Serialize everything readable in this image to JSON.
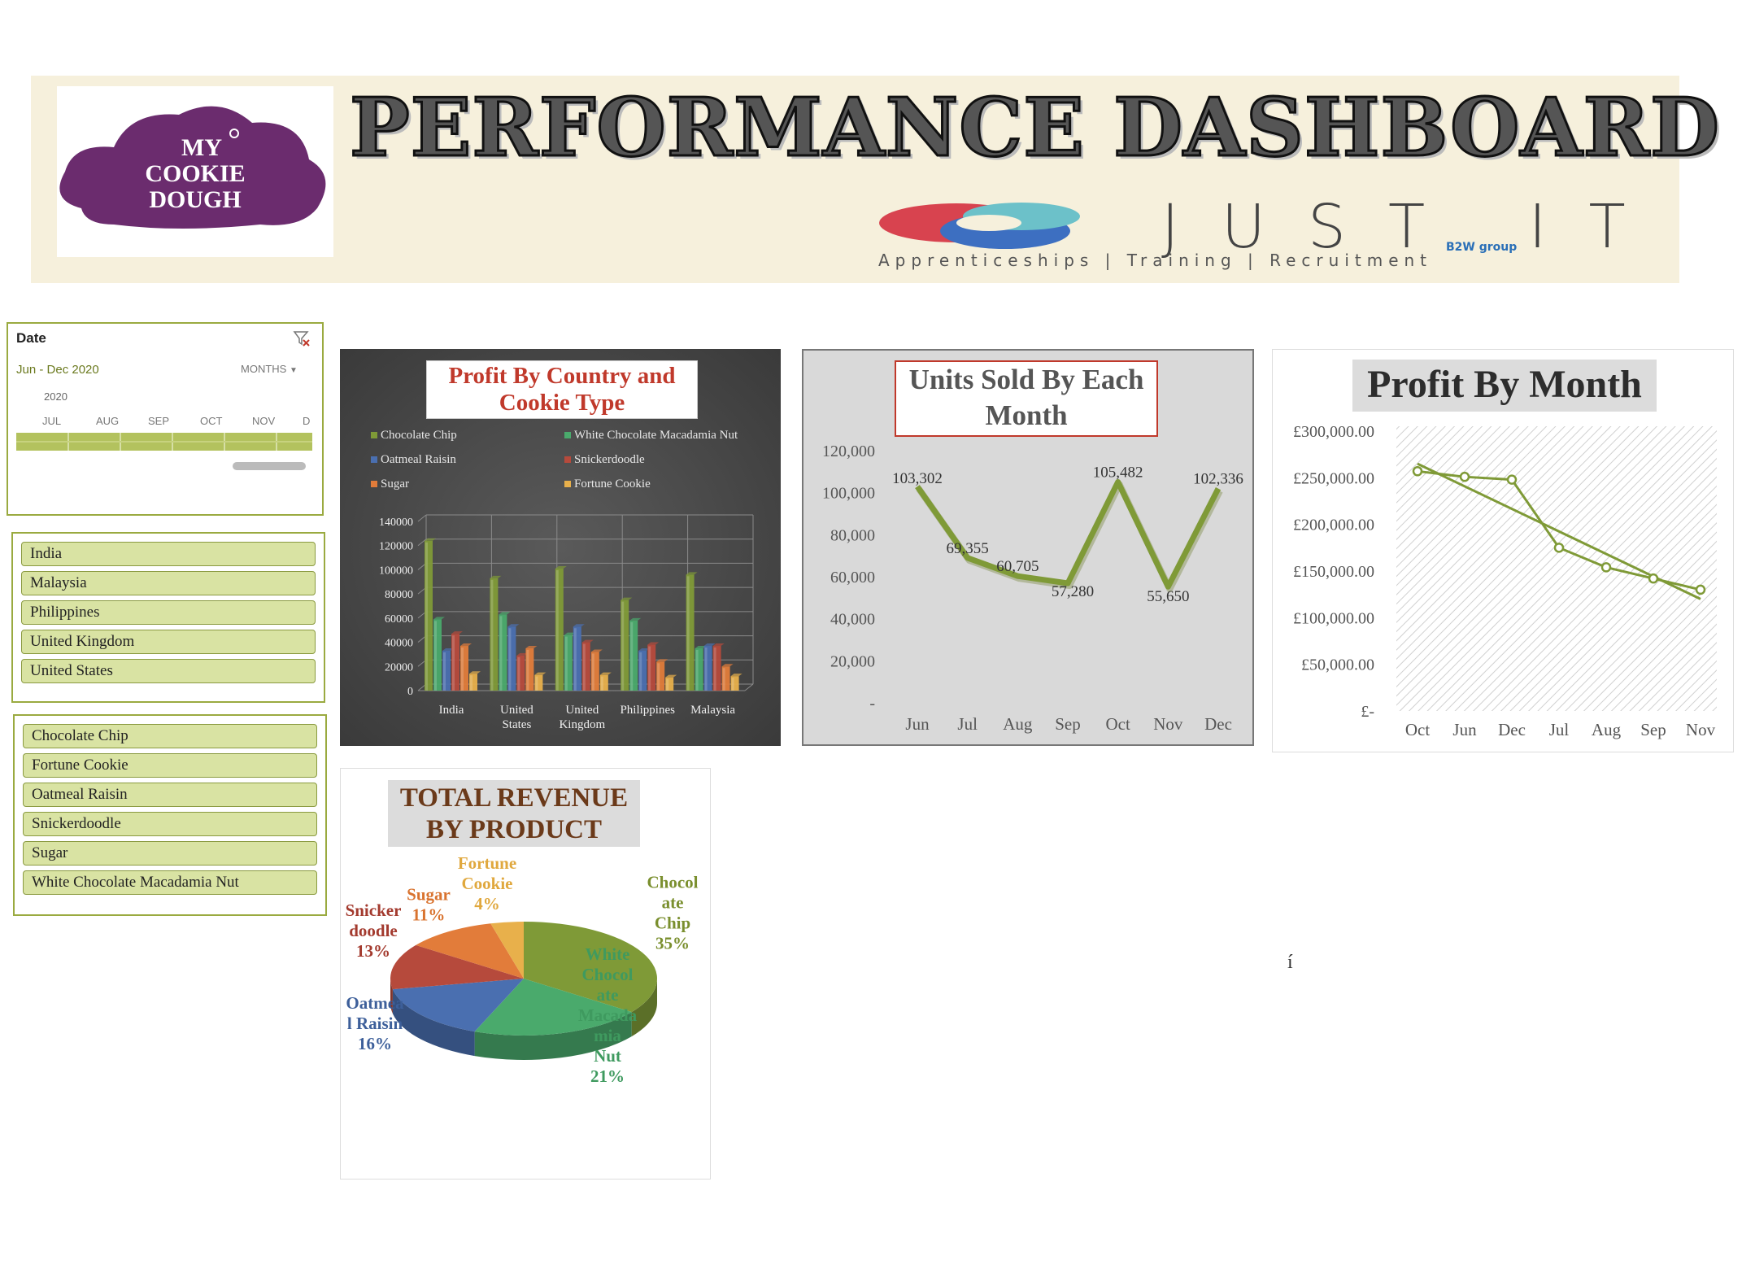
{
  "header": {
    "title": "PERFORMANCE DASHBOARD",
    "logo_lines": [
      "MY",
      "COOKIE",
      "DOUGH"
    ],
    "partner_word": "JUST IT",
    "partner_tagline": "Apprenticeships  |  Training  |  Recruitment",
    "partner_group": "B2W group"
  },
  "date_slicer": {
    "title": "Date",
    "range": "Jun - Dec 2020",
    "level": "MONTHS",
    "year": "2020",
    "months": [
      "JUL",
      "AUG",
      "SEP",
      "OCT",
      "NOV",
      "D"
    ]
  },
  "country_slicer": {
    "items": [
      "India",
      "Malaysia",
      "Philippines",
      "United Kingdom",
      "United States"
    ]
  },
  "product_slicer": {
    "items": [
      "Chocolate Chip",
      "Fortune Cookie",
      "Oatmeal Raisin",
      "Snickerdoodle",
      "Sugar",
      "White Chocolate Macadamia Nut"
    ]
  },
  "stray_mark": "í",
  "colors": {
    "chocolate_chip": "#7f9a37",
    "white_choc": "#4aaa6c",
    "oatmeal": "#4a6fb0",
    "snickerdoodle": "#b64a3c",
    "sugar": "#e27c3a",
    "fortune": "#e8b04b",
    "line_green": "#7f9a37"
  },
  "chart_data": [
    {
      "type": "bar",
      "title": "Profit By Country and Cookie Type",
      "categories": [
        "India",
        "United States",
        "United Kingdom",
        "Philippines",
        "Malaysia"
      ],
      "category_lines": [
        [
          "India"
        ],
        [
          "United",
          "States"
        ],
        [
          "United",
          "Kingdom"
        ],
        [
          "Philippines"
        ],
        [
          "Malaysia"
        ]
      ],
      "series": [
        {
          "name": "Chocolate Chip",
          "values": [
            124000,
            93000,
            101000,
            75000,
            96000
          ]
        },
        {
          "name": "White Chocolate Macadamia Nut",
          "values": [
            59000,
            63000,
            46000,
            58000,
            35000
          ]
        },
        {
          "name": "Oatmeal Raisin",
          "values": [
            33000,
            53000,
            53000,
            33000,
            37000
          ]
        },
        {
          "name": "Snickerdoodle",
          "values": [
            47000,
            29000,
            40000,
            38000,
            37000
          ]
        },
        {
          "name": "Sugar",
          "values": [
            37000,
            35000,
            32000,
            24000,
            20000
          ]
        },
        {
          "name": "Fortune Cookie",
          "values": [
            14000,
            13000,
            13000,
            11000,
            12000
          ]
        }
      ],
      "yticks": [
        "0",
        "20000",
        "40000",
        "60000",
        "80000",
        "100000",
        "120000",
        "140000"
      ],
      "ylim": [
        0,
        140000
      ],
      "legend": "top",
      "grid": true
    },
    {
      "type": "line",
      "title": "Units Sold By Each Month",
      "categories": [
        "Jun",
        "Jul",
        "Aug",
        "Sep",
        "Oct",
        "Nov",
        "Dec"
      ],
      "values": [
        103302,
        69355,
        60705,
        57280,
        105482,
        55650,
        102336
      ],
      "data_labels": [
        "103,302",
        "69,355",
        "60,705",
        "57,280",
        "105,482",
        "55,650",
        "102,336"
      ],
      "yticks": [
        "-",
        "20,000",
        "40,000",
        "60,000",
        "80,000",
        "100,000",
        "120,000"
      ],
      "ylim": [
        0,
        120000
      ],
      "grid": false
    },
    {
      "type": "line",
      "title": "Profit By Month",
      "categories": [
        "Oct",
        "Jun",
        "Dec",
        "Jul",
        "Aug",
        "Sep",
        "Nov"
      ],
      "values": [
        257000,
        251000,
        248000,
        175000,
        154000,
        142000,
        130000
      ],
      "trendline": [
        265000,
        120000
      ],
      "yticks": [
        "£-",
        "£50,000.00",
        "£100,000.00",
        "£150,000.00",
        "£200,000.00",
        "£250,000.00",
        "£300,000.00"
      ],
      "ylim": [
        0,
        300000
      ],
      "grid": true
    },
    {
      "type": "pie",
      "title": "TOTAL REVENUE BY PRODUCT",
      "slices": [
        {
          "name": "Chocolate Chip",
          "label_lines": [
            "Chocol",
            "ate",
            "Chip"
          ],
          "percent": "35%",
          "value": 35
        },
        {
          "name": "White Chocolate Macadamia Nut",
          "label_lines": [
            "White",
            "Chocol",
            "ate",
            "Macada",
            "mia",
            "Nut"
          ],
          "percent": "21%",
          "value": 21
        },
        {
          "name": "Oatmeal Raisin",
          "label_lines": [
            "Oatmea",
            "l Raisin"
          ],
          "percent": "16%",
          "value": 16
        },
        {
          "name": "Snickerdoodle",
          "label_lines": [
            "Snicker",
            "doodle"
          ],
          "percent": "13%",
          "value": 13
        },
        {
          "name": "Sugar",
          "label_lines": [
            "Sugar"
          ],
          "percent": "11%",
          "value": 11
        },
        {
          "name": "Fortune Cookie",
          "label_lines": [
            "Fortune",
            "Cookie"
          ],
          "percent": "4%",
          "value": 4
        }
      ]
    }
  ]
}
